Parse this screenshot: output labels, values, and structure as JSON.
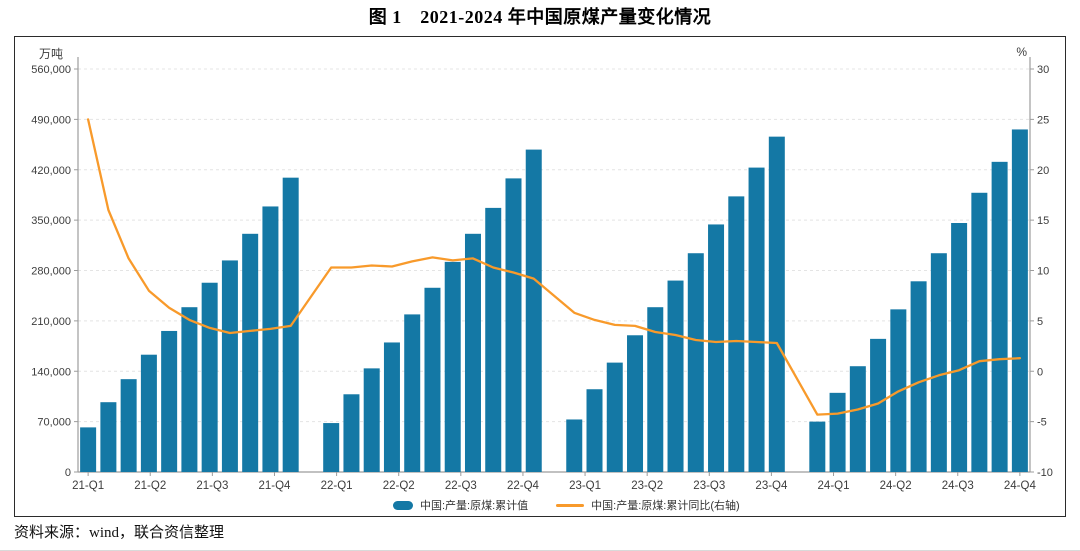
{
  "title": "图 1　2021-2024 年中国原煤产量变化情况",
  "footer": "资料来源：wind，联合资信整理",
  "legend": {
    "bar_label": "中国:产量:原煤:累计值",
    "line_label": "中国:产量:原煤:累计同比(右轴)"
  },
  "colors": {
    "bar": "#1478A5",
    "line": "#F89A2B",
    "grid": "#E4E4E4",
    "axis": "#9C9C9C",
    "tick_text": "#3D3D3D",
    "frame": "#2B2B2B"
  },
  "chart_data": {
    "type": "bar",
    "title": "图 1　2021-2024 年中国原煤产量变化情况",
    "left_axis": {
      "unit": "万吨",
      "min": 0,
      "max": 560000,
      "step": 70000,
      "tick_labels": [
        "0",
        "70,000",
        "140,000",
        "210,000",
        "280,000",
        "350,000",
        "420,000",
        "490,000",
        "560,000"
      ]
    },
    "right_axis": {
      "unit": "%",
      "min": -10,
      "max": 30,
      "step": 5,
      "tick_labels": [
        "-10",
        "-5",
        "0",
        "5",
        "10",
        "15",
        "20",
        "25",
        "30"
      ]
    },
    "x_quarter_labels": [
      "21-Q1",
      "21-Q2",
      "21-Q3",
      "21-Q4",
      "22-Q1",
      "22-Q2",
      "22-Q3",
      "22-Q4",
      "23-Q1",
      "23-Q2",
      "23-Q3",
      "23-Q4",
      "24-Q1",
      "24-Q2",
      "24-Q3",
      "24-Q4"
    ],
    "months": [
      "2021-02",
      "2021-03",
      "2021-04",
      "2021-05",
      "2021-06",
      "2021-07",
      "2021-08",
      "2021-09",
      "2021-10",
      "2021-11",
      "2021-12",
      "2022-02",
      "2022-03",
      "2022-04",
      "2022-05",
      "2022-06",
      "2022-07",
      "2022-08",
      "2022-09",
      "2022-10",
      "2022-11",
      "2022-12",
      "2023-02",
      "2023-03",
      "2023-04",
      "2023-05",
      "2023-06",
      "2023-07",
      "2023-08",
      "2023-09",
      "2023-10",
      "2023-11",
      "2023-12",
      "2024-02",
      "2024-03",
      "2024-04",
      "2024-05",
      "2024-06",
      "2024-07",
      "2024-08",
      "2024-09",
      "2024-10",
      "2024-11",
      "2024-12"
    ],
    "series": [
      {
        "name": "中国:产量:原煤:累计值",
        "type": "bar",
        "axis": "left",
        "color": "#1478A5",
        "values": [
          62000,
          97000,
          129000,
          163000,
          196000,
          229000,
          263000,
          294000,
          331000,
          369000,
          409000,
          68000,
          108000,
          144000,
          180000,
          219000,
          256000,
          292000,
          331000,
          367000,
          408000,
          448000,
          73000,
          115000,
          152000,
          190000,
          229000,
          266000,
          304000,
          344000,
          383000,
          423000,
          466000,
          70000,
          110000,
          147000,
          185000,
          226000,
          265000,
          304000,
          346000,
          388000,
          431000,
          476000
        ]
      },
      {
        "name": "中国:产量:原煤:累计同比(右轴)",
        "type": "line",
        "axis": "right",
        "color": "#F89A2B",
        "values": [
          25.0,
          16.0,
          11.2,
          8.0,
          6.3,
          5.1,
          4.3,
          3.8,
          4.0,
          4.2,
          4.5,
          10.3,
          10.3,
          10.5,
          10.4,
          10.9,
          11.3,
          11.0,
          11.2,
          10.3,
          9.8,
          9.2,
          5.8,
          5.1,
          4.6,
          4.5,
          3.9,
          3.6,
          3.1,
          2.9,
          3.0,
          2.9,
          2.8,
          -4.3,
          -4.2,
          -3.8,
          -3.2,
          -2.0,
          -1.1,
          -0.4,
          0.1,
          1.0,
          1.2,
          1.3
        ]
      }
    ],
    "layout": {
      "grid": true,
      "legend_position": "bottom"
    }
  }
}
